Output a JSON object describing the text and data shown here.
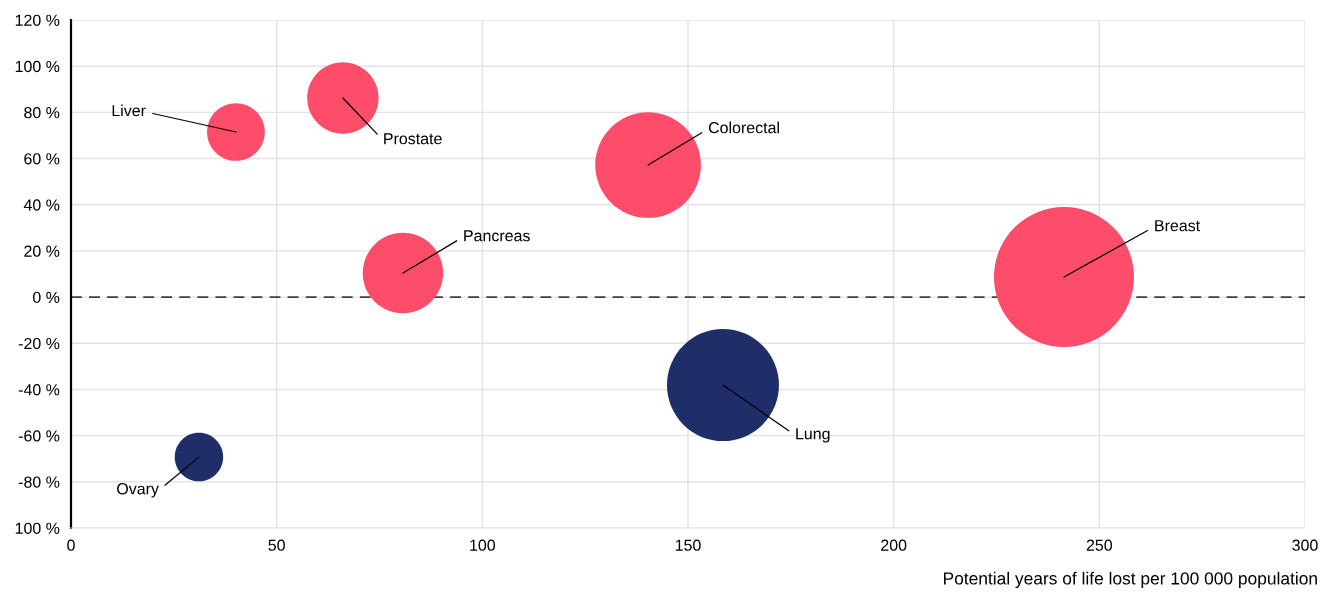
{
  "chart_data": {
    "type": "bubble",
    "xlabel": "Potential years of life lost per 100 000 population",
    "series": [
      {
        "color": "#fe4d6a",
        "x": [
          40.1,
          66.1,
          140.3,
          80.7,
          241.4
        ],
        "values": [
          71.5,
          86.2,
          57.2,
          10.4,
          8.7
        ],
        "sizes": [
          0.17,
          0.26,
          0.57,
          0.33,
          1
        ]
      },
      {
        "color": "#1f2d69",
        "x": [
          158.5,
          31.1
        ],
        "values": [
          -38.1,
          -69.3
        ],
        "sizes": [
          0.64,
          0.12
        ]
      }
    ],
    "annotations": [
      {
        "text": "Liver",
        "x": 40.1,
        "y": 71.5
      },
      {
        "text": "Prostate",
        "x": 66.1,
        "y": 86.2
      },
      {
        "text": "Colorectal",
        "x": 140.3,
        "y": 57.2
      },
      {
        "text": "Pancreas",
        "x": 80.7,
        "y": 10.4
      },
      {
        "text": "Breast",
        "x": 241.4,
        "y": 8.7
      },
      {
        "text": "Lung",
        "x": 158.5,
        "y": -38.1
      },
      {
        "text": "Ovary",
        "x": 31.1,
        "y": -69.3
      }
    ],
    "xlim": [
      0,
      300
    ],
    "xticks": [
      0,
      50,
      100,
      150,
      200,
      250,
      300
    ],
    "ylim": [
      -100,
      120
    ],
    "yticks": [
      {
        "value": -100,
        "label": "100 %"
      },
      {
        "value": -80,
        "label": "-80 %"
      },
      {
        "value": -60,
        "label": "-60 %"
      },
      {
        "value": -40,
        "label": "-40 %"
      },
      {
        "value": -20,
        "label": "-20 %"
      },
      {
        "value": 0,
        "label": "0 %"
      },
      {
        "value": 20,
        "label": "20 %"
      },
      {
        "value": 40,
        "label": "40 %"
      },
      {
        "value": 60,
        "label": "60 %"
      },
      {
        "value": 80,
        "label": "80 %"
      },
      {
        "value": 100,
        "label": "100 %"
      },
      {
        "value": 120,
        "label": "120 %"
      }
    ],
    "ref_lines": [
      {
        "axis": "y",
        "value": 0,
        "color": "#404040",
        "line_style": "dashed"
      }
    ],
    "grid": true
  }
}
